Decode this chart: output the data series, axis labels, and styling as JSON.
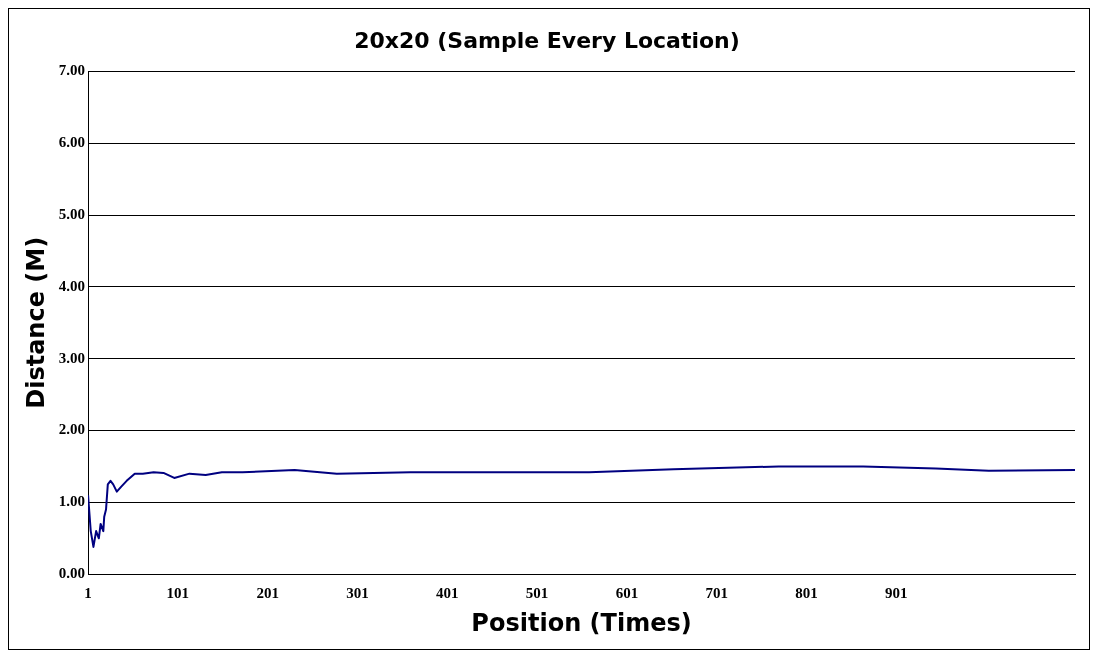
{
  "chart_data": {
    "type": "line",
    "title": "20x20 (Sample Every Location)",
    "xlabel": "Position (Times)",
    "ylabel": "Distance (M)",
    "x": [
      1,
      4,
      7,
      10,
      13,
      15,
      18,
      19,
      21,
      23,
      26,
      29,
      33,
      38,
      44,
      53,
      62,
      74,
      85,
      97,
      114,
      132,
      150,
      173,
      231,
      278,
      360,
      442,
      559,
      653,
      770,
      864,
      945,
      1004,
      1100
    ],
    "series": [
      {
        "color": "#000080",
        "values": [
          1.1,
          0.6,
          0.38,
          0.6,
          0.5,
          0.7,
          0.6,
          0.8,
          0.9,
          1.25,
          1.3,
          1.25,
          1.15,
          1.22,
          1.3,
          1.4,
          1.4,
          1.42,
          1.41,
          1.34,
          1.4,
          1.38,
          1.42,
          1.42,
          1.45,
          1.4,
          1.42,
          1.42,
          1.42,
          1.46,
          1.5,
          1.5,
          1.47,
          1.44,
          1.45
        ]
      }
    ],
    "xlim": [
      1,
      1100
    ],
    "xticks": [
      1,
      101,
      201,
      301,
      401,
      501,
      601,
      701,
      801,
      901
    ],
    "ylim": [
      0,
      7
    ],
    "yticks": [
      {
        "value": 0,
        "label": "0.00"
      },
      {
        "value": 1,
        "label": "1.00"
      },
      {
        "value": 2,
        "label": "2.00"
      },
      {
        "value": 3,
        "label": "3.00"
      },
      {
        "value": 4,
        "label": "4.00"
      },
      {
        "value": 5,
        "label": "5.00"
      },
      {
        "value": 6,
        "label": "6.00"
      },
      {
        "value": 7,
        "label": "7.00"
      }
    ],
    "grid": "y",
    "legend": false,
    "marker": "none",
    "line_style": "solid"
  }
}
